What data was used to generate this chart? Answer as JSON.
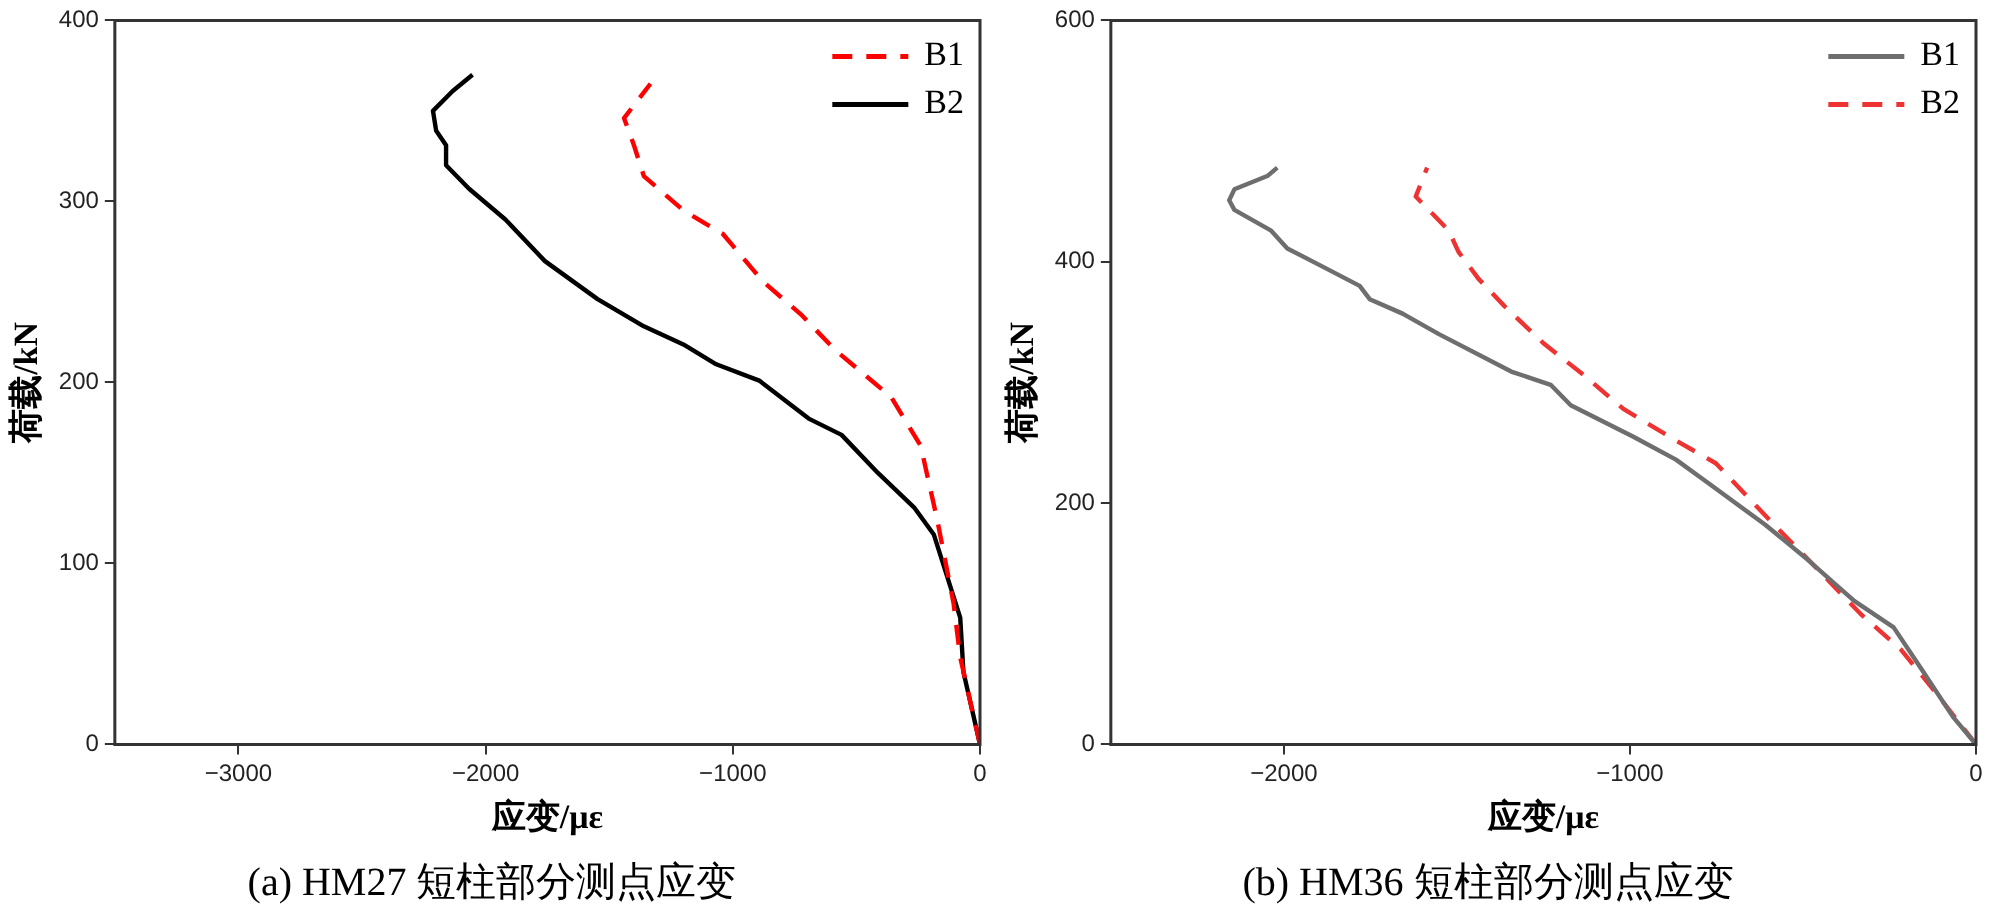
{
  "chart_data": [
    {
      "type": "line",
      "title": "(a) HM27 短柱部分测点应变",
      "xlabel": "应变/με",
      "ylabel": "荷载/kN",
      "xlim": [
        -3500,
        0
      ],
      "xticks": [
        -3000,
        -2000,
        -1000,
        0
      ],
      "ylim": [
        0,
        400
      ],
      "yticks": [
        0,
        100,
        200,
        300,
        400
      ],
      "grid": false,
      "legend": "top right",
      "marker": "none",
      "series": [
        {
          "name": "B1",
          "color": "#ff0000",
          "line_style": "dashed",
          "x": [
            0,
            -80,
            -107,
            -173,
            -240,
            -360,
            -587,
            -720,
            -880,
            -1040,
            -1200,
            -1360,
            -1400,
            -1440,
            -1333
          ],
          "values": [
            0,
            48,
            78,
            124,
            165,
            192,
            218,
            237,
            256,
            282,
            295,
            314,
            331,
            346,
            365
          ]
        },
        {
          "name": "B2",
          "color": "#000000",
          "line_style": "solid",
          "x": [
            0,
            -67,
            -80,
            -187,
            -267,
            -413,
            -560,
            -693,
            -893,
            -1067,
            -1200,
            -1360,
            -1547,
            -1760,
            -1920,
            -2067,
            -2160,
            -2160,
            -2200,
            -2213,
            -2133,
            -2053
          ],
          "values": [
            0,
            40,
            70,
            116,
            131,
            150,
            171,
            180,
            201,
            210,
            221,
            231,
            246,
            267,
            290,
            307,
            320,
            331,
            339,
            350,
            361,
            370
          ]
        }
      ]
    },
    {
      "type": "line",
      "title": "(b) HM36 短柱部分测点应变",
      "xlabel": "应变/με",
      "ylabel": "荷载/kN",
      "xlim": [
        -2500,
        0
      ],
      "xticks": [
        -2000,
        -1000,
        0
      ],
      "ylim": [
        0,
        600
      ],
      "yticks": [
        0,
        200,
        400,
        600
      ],
      "grid": false,
      "legend": "top right",
      "marker": "none",
      "series": [
        {
          "name": "B1",
          "color": "#6e6e6e",
          "line_style": "solid",
          "x": [
            0,
            -67,
            -152,
            -238,
            -352,
            -486,
            -609,
            -771,
            -867,
            -990,
            -1171,
            -1229,
            -1343,
            -1552,
            -1657,
            -1752,
            -1781,
            -1895,
            -1990,
            -2038,
            -2143,
            -2158,
            -2143,
            -2048,
            -2019
          ],
          "values": [
            0,
            23,
            60,
            97,
            119,
            153,
            182,
            216,
            236,
            255,
            281,
            298,
            309,
            340,
            357,
            369,
            380,
            397,
            411,
            426,
            443,
            451,
            460,
            471,
            478
          ]
        },
        {
          "name": "B2",
          "color": "#ee3333",
          "line_style": "dashed",
          "x": [
            0,
            -122,
            -218,
            -333,
            -447,
            -600,
            -752,
            -886,
            -1019,
            -1133,
            -1248,
            -1362,
            -1438,
            -1495,
            -1524,
            -1619,
            -1586
          ],
          "values": [
            0,
            45,
            79,
            108,
            142,
            187,
            233,
            255,
            278,
            306,
            332,
            363,
            386,
            408,
            426,
            454,
            478
          ]
        }
      ]
    }
  ]
}
